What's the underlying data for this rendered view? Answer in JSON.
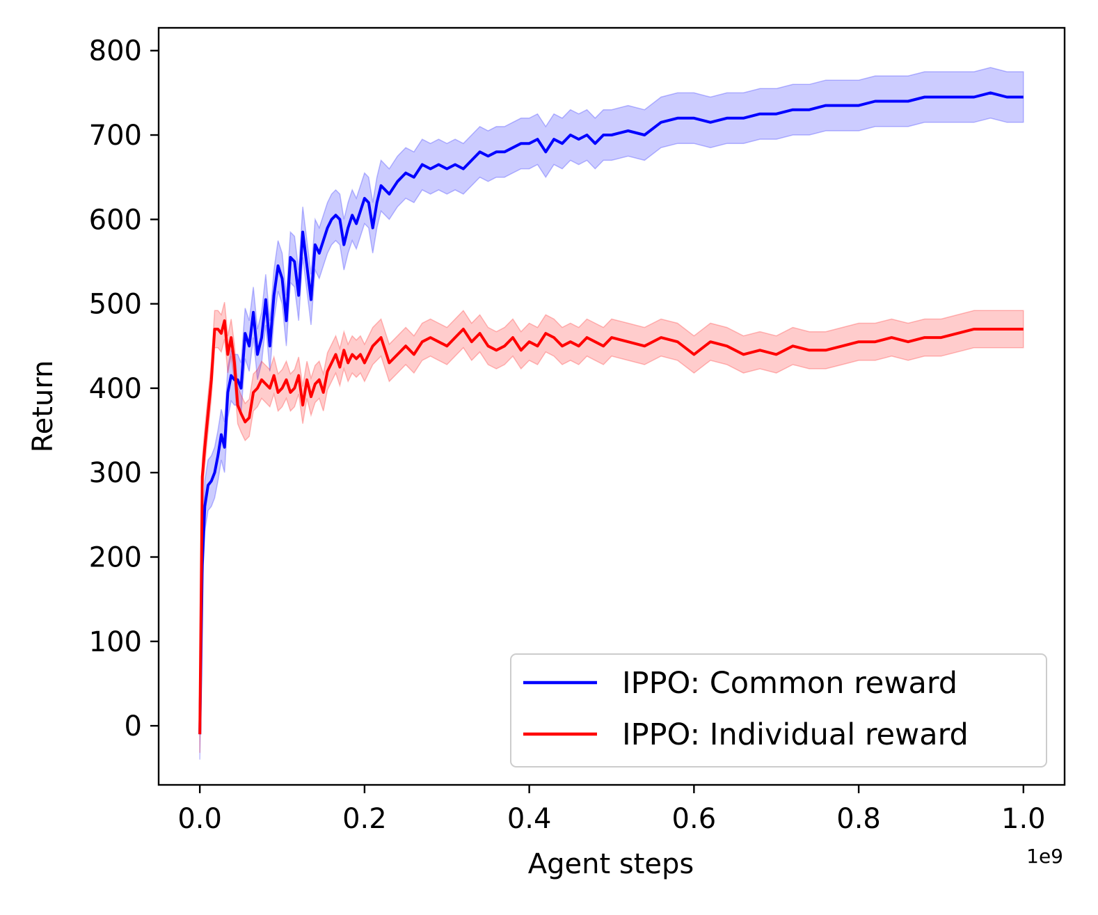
{
  "chart_data": {
    "type": "line",
    "title": "",
    "xlabel": "Agent steps",
    "ylabel": "Return",
    "x_offset_label": "1e9",
    "xlim": [
      -0.05,
      1.05
    ],
    "ylim": [
      -70,
      827
    ],
    "x_ticks": [
      0.0,
      0.2,
      0.4,
      0.6,
      0.8,
      1.0
    ],
    "x_tick_labels": [
      "0.0",
      "0.2",
      "0.4",
      "0.6",
      "0.8",
      "1.0"
    ],
    "y_ticks": [
      0,
      100,
      200,
      300,
      400,
      500,
      600,
      700,
      800
    ],
    "y_tick_labels": [
      "0",
      "100",
      "200",
      "300",
      "400",
      "500",
      "600",
      "700",
      "800"
    ],
    "grid": false,
    "legend_position": "bottom-right",
    "series": [
      {
        "name": "IPPO: Common reward",
        "color": "#0000ff",
        "band_color": "#0000ff",
        "x": [
          0.0,
          0.003,
          0.006,
          0.01,
          0.014,
          0.018,
          0.022,
          0.026,
          0.03,
          0.034,
          0.038,
          0.042,
          0.046,
          0.05,
          0.055,
          0.06,
          0.065,
          0.07,
          0.075,
          0.08,
          0.085,
          0.09,
          0.095,
          0.1,
          0.105,
          0.11,
          0.115,
          0.12,
          0.125,
          0.13,
          0.135,
          0.14,
          0.145,
          0.15,
          0.155,
          0.16,
          0.165,
          0.17,
          0.175,
          0.18,
          0.185,
          0.19,
          0.195,
          0.2,
          0.205,
          0.21,
          0.215,
          0.22,
          0.23,
          0.24,
          0.25,
          0.26,
          0.27,
          0.28,
          0.29,
          0.3,
          0.31,
          0.32,
          0.33,
          0.34,
          0.35,
          0.36,
          0.37,
          0.38,
          0.39,
          0.4,
          0.41,
          0.42,
          0.43,
          0.44,
          0.45,
          0.46,
          0.47,
          0.48,
          0.49,
          0.5,
          0.52,
          0.54,
          0.56,
          0.58,
          0.6,
          0.62,
          0.64,
          0.66,
          0.68,
          0.7,
          0.72,
          0.74,
          0.76,
          0.78,
          0.8,
          0.82,
          0.84,
          0.86,
          0.88,
          0.9,
          0.92,
          0.94,
          0.96,
          0.98,
          1.0
        ],
        "values": [
          -10,
          190,
          260,
          285,
          290,
          300,
          320,
          345,
          330,
          395,
          415,
          410,
          410,
          400,
          465,
          450,
          490,
          440,
          460,
          505,
          450,
          510,
          545,
          530,
          480,
          555,
          550,
          510,
          585,
          545,
          505,
          570,
          560,
          575,
          590,
          600,
          605,
          600,
          570,
          590,
          605,
          595,
          610,
          625,
          620,
          590,
          620,
          640,
          630,
          645,
          655,
          650,
          665,
          660,
          665,
          660,
          665,
          660,
          670,
          680,
          675,
          680,
          680,
          685,
          690,
          690,
          695,
          680,
          695,
          690,
          700,
          695,
          700,
          690,
          700,
          700,
          705,
          700,
          715,
          720,
          720,
          715,
          720,
          720,
          725,
          725,
          730,
          730,
          735,
          735,
          735,
          740,
          740,
          740,
          745,
          745,
          745,
          745,
          750,
          745,
          745
        ],
        "band": 30
      },
      {
        "name": "IPPO: Individual reward",
        "color": "#ff0000",
        "band_color": "#ff0000",
        "x": [
          0.0,
          0.003,
          0.006,
          0.01,
          0.014,
          0.018,
          0.022,
          0.026,
          0.03,
          0.034,
          0.038,
          0.042,
          0.046,
          0.05,
          0.055,
          0.06,
          0.065,
          0.07,
          0.075,
          0.08,
          0.085,
          0.09,
          0.095,
          0.1,
          0.105,
          0.11,
          0.115,
          0.12,
          0.125,
          0.13,
          0.135,
          0.14,
          0.145,
          0.15,
          0.155,
          0.16,
          0.165,
          0.17,
          0.175,
          0.18,
          0.185,
          0.19,
          0.195,
          0.2,
          0.21,
          0.22,
          0.23,
          0.24,
          0.25,
          0.26,
          0.27,
          0.28,
          0.29,
          0.3,
          0.31,
          0.32,
          0.33,
          0.34,
          0.35,
          0.36,
          0.37,
          0.38,
          0.39,
          0.4,
          0.41,
          0.42,
          0.43,
          0.44,
          0.45,
          0.46,
          0.47,
          0.48,
          0.49,
          0.5,
          0.52,
          0.54,
          0.56,
          0.58,
          0.6,
          0.62,
          0.64,
          0.66,
          0.68,
          0.7,
          0.72,
          0.74,
          0.76,
          0.78,
          0.8,
          0.82,
          0.84,
          0.86,
          0.88,
          0.9,
          0.92,
          0.94,
          0.96,
          0.98,
          1.0
        ],
        "values": [
          -10,
          295,
          330,
          370,
          410,
          470,
          470,
          465,
          480,
          440,
          460,
          430,
          380,
          370,
          360,
          365,
          395,
          400,
          410,
          405,
          400,
          415,
          395,
          400,
          410,
          395,
          400,
          415,
          380,
          410,
          390,
          405,
          410,
          395,
          420,
          430,
          440,
          425,
          445,
          430,
          440,
          435,
          440,
          430,
          450,
          460,
          430,
          440,
          450,
          440,
          455,
          460,
          455,
          450,
          460,
          470,
          455,
          465,
          450,
          445,
          450,
          460,
          445,
          455,
          450,
          465,
          460,
          450,
          455,
          450,
          460,
          455,
          450,
          460,
          455,
          450,
          460,
          455,
          440,
          455,
          450,
          440,
          445,
          440,
          450,
          445,
          445,
          450,
          455,
          455,
          460,
          455,
          460,
          460,
          465,
          470,
          470,
          470,
          470
        ],
        "band": 22
      }
    ]
  }
}
